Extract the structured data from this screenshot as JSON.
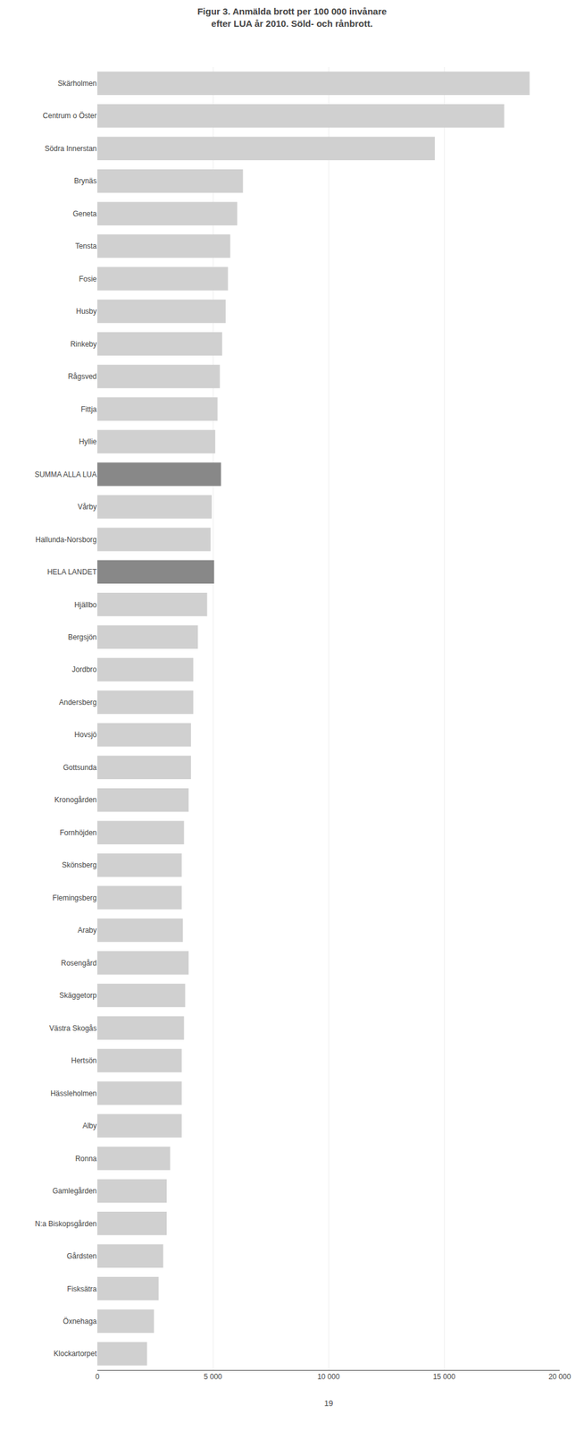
{
  "chart_data": {
    "type": "bar",
    "orientation": "horizontal",
    "title": "Figur 3. Anmälda brott per 100 000 invånare\nefter LUA år 2010. Söld- och rånbrott.",
    "annotations": [
      "19"
    ],
    "categories": [
      "Skärholmen",
      "Centrum o Öster",
      "Södra Innerstan",
      "Brynäs",
      "Geneta",
      "Tensta",
      "Fosie",
      "Husby",
      "Rinkeby",
      "Rågsved",
      "Fittja",
      "Hyllie",
      "SUMMA ALLA LUA",
      "Vårby",
      "Hallunda-Norsborg",
      "HELA LANDET",
      "Hjällbo",
      "Bergsjön",
      "Jordbro",
      "Andersberg",
      "Hovsjö",
      "Gottsunda",
      "Kronogården",
      "Fornhöjden",
      "Skönsberg",
      "Flemingsberg",
      "Araby",
      "Rosengård",
      "Skäggetorp",
      "Västra Skogås",
      "Hertsön",
      "Hässleholmen",
      "Alby",
      "Ronna",
      "Gamlegården",
      "N:a Biskopsgården",
      "Gårdsten",
      "Fisksätra",
      "Öxnehaga",
      "Klockartorpet"
    ],
    "values": [
      18700,
      17600,
      14600,
      6300,
      6050,
      5750,
      5650,
      5550,
      5400,
      5300,
      5200,
      5100,
      5350,
      4950,
      4900,
      5050,
      4750,
      4350,
      4150,
      4150,
      4050,
      4050,
      3950,
      3750,
      3650,
      3650,
      3700,
      3950,
      3800,
      3750,
      3650,
      3650,
      3650,
      3150,
      3000,
      3000,
      2850,
      2650,
      2450,
      2150
    ],
    "colors": [
      "#d0d0d0",
      "#d0d0d0",
      "#d0d0d0",
      "#d0d0d0",
      "#d0d0d0",
      "#d0d0d0",
      "#d0d0d0",
      "#d0d0d0",
      "#d0d0d0",
      "#d0d0d0",
      "#d0d0d0",
      "#d0d0d0",
      "#888888",
      "#d0d0d0",
      "#d0d0d0",
      "#888888",
      "#d0d0d0",
      "#d0d0d0",
      "#d0d0d0",
      "#d0d0d0",
      "#d0d0d0",
      "#d0d0d0",
      "#d0d0d0",
      "#d0d0d0",
      "#d0d0d0",
      "#d0d0d0",
      "#d0d0d0",
      "#d0d0d0",
      "#d0d0d0",
      "#d0d0d0",
      "#d0d0d0",
      "#d0d0d0",
      "#d0d0d0",
      "#d0d0d0",
      "#d0d0d0",
      "#d0d0d0",
      "#d0d0d0",
      "#d0d0d0",
      "#d0d0d0",
      "#d0d0d0"
    ],
    "xlim": [
      0,
      20000
    ],
    "xticks": [
      0,
      {
        "value": 5000,
        "label": "5 000"
      },
      {
        "value": 10000,
        "label": "10 000"
      },
      {
        "value": 15000,
        "label": "15 000"
      },
      {
        "value": 20000,
        "label": "20 000"
      }
    ],
    "grid": true
  }
}
